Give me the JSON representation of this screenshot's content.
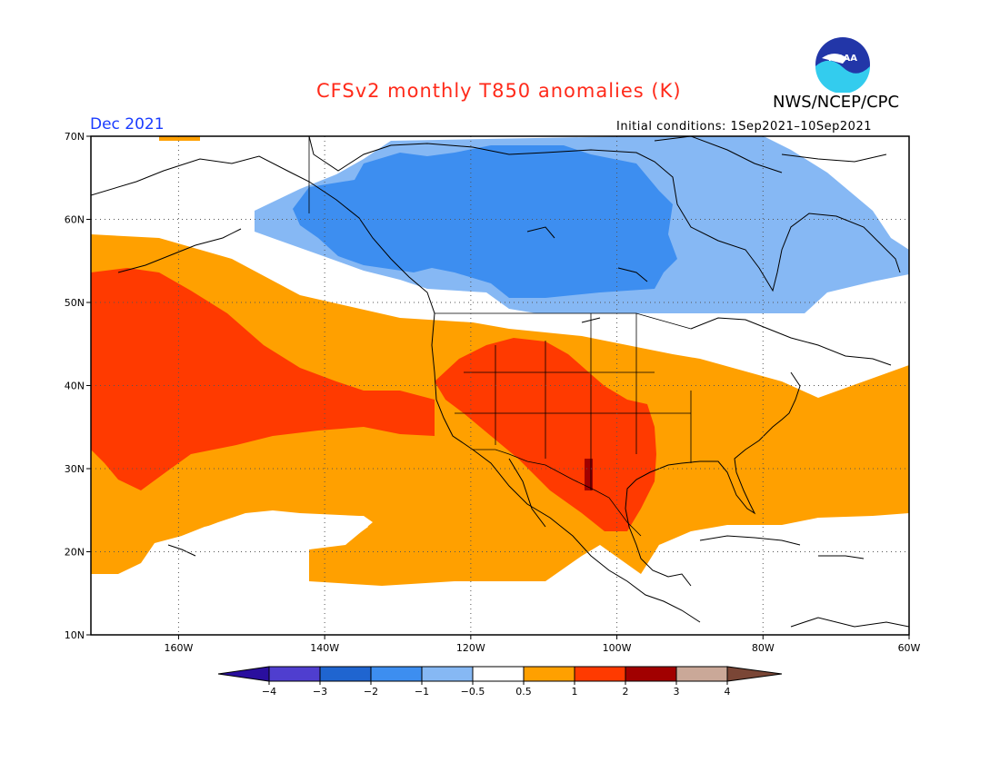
{
  "header": {
    "title": "CFSv2 monthly T850 anomalies (K)",
    "organization": "NWS/NCEP/CPC",
    "logo_text": "NOAA",
    "valid_period": "Dec 2021",
    "initial_conditions": "Initial conditions: 1Sep2021–10Sep2021"
  },
  "map": {
    "lat_labels": [
      "70N",
      "60N",
      "50N",
      "40N",
      "30N",
      "20N",
      "10N"
    ],
    "lon_labels": [
      "160W",
      "140W",
      "120W",
      "100W",
      "80W",
      "60W"
    ],
    "lat_range": [
      10,
      70
    ],
    "lon_range": [
      -172,
      -60
    ],
    "lat_lines": [
      60,
      50,
      40,
      30,
      20
    ],
    "lon_lines": [
      -160,
      -140,
      -120,
      -100,
      -80
    ]
  },
  "colorbar": {
    "labels": [
      "−4",
      "−3",
      "−2",
      "−1",
      "−0.5",
      "0.5",
      "1",
      "2",
      "3",
      "4"
    ],
    "colors": [
      "#2a0f9e",
      "#4f3ecf",
      "#1f65d0",
      "#3d8ef0",
      "#86b8f4",
      "#ffffff",
      "#ffa000",
      "#ff3a00",
      "#a10000",
      "#caa898",
      "#7a4636"
    ]
  }
}
